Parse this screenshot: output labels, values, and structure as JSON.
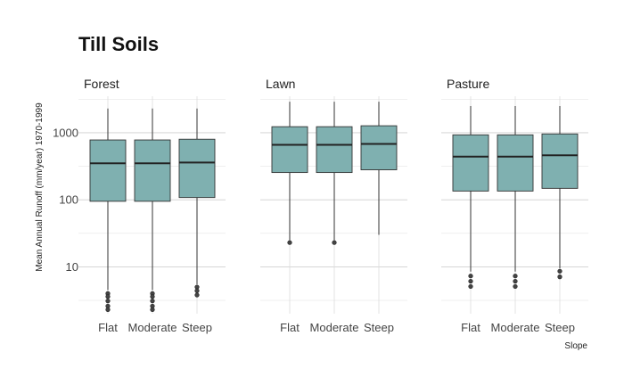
{
  "chart_data": {
    "type": "boxplot",
    "title": "Till Soils",
    "xlabel": "Slope",
    "ylabel": "Mean Annual Runoff (mm/year) 1970-1999",
    "y_scale": "log10",
    "ylim": [
      2,
      3500
    ],
    "y_ticks": [
      10,
      100,
      1000
    ],
    "y_tick_labels": [
      "10",
      "100",
      "1000"
    ],
    "categories": [
      "Flat",
      "Moderate",
      "Steep"
    ],
    "box_color": "#7fb0b0",
    "grid": true,
    "panels": [
      {
        "name": "Forest",
        "boxes": [
          {
            "category": "Flat",
            "q1": 95,
            "median": 350,
            "q3": 780,
            "whisker_low": 4.5,
            "whisker_high": 2300,
            "outliers": [
              4.0,
              3.6,
              3.1,
              2.6,
              2.3
            ]
          },
          {
            "category": "Moderate",
            "q1": 95,
            "median": 350,
            "q3": 780,
            "whisker_low": 4.5,
            "whisker_high": 2300,
            "outliers": [
              4.0,
              3.6,
              3.1,
              2.6,
              2.3
            ]
          },
          {
            "category": "Steep",
            "q1": 108,
            "median": 360,
            "q3": 800,
            "whisker_low": 5.5,
            "whisker_high": 2300,
            "outliers": [
              5.0,
              4.4,
              3.8
            ]
          }
        ]
      },
      {
        "name": "Lawn",
        "boxes": [
          {
            "category": "Flat",
            "q1": 255,
            "median": 660,
            "q3": 1230,
            "whisker_low": 25,
            "whisker_high": 2900,
            "outliers": [
              23
            ]
          },
          {
            "category": "Moderate",
            "q1": 255,
            "median": 660,
            "q3": 1230,
            "whisker_low": 25,
            "whisker_high": 2900,
            "outliers": [
              23
            ]
          },
          {
            "category": "Steep",
            "q1": 280,
            "median": 680,
            "q3": 1270,
            "whisker_low": 30,
            "whisker_high": 2900,
            "outliers": []
          }
        ]
      },
      {
        "name": "Pasture",
        "boxes": [
          {
            "category": "Flat",
            "q1": 135,
            "median": 440,
            "q3": 930,
            "whisker_low": 8.5,
            "whisker_high": 2500,
            "outliers": [
              7.3,
              6.1,
              5.1
            ]
          },
          {
            "category": "Moderate",
            "q1": 135,
            "median": 440,
            "q3": 930,
            "whisker_low": 8.5,
            "whisker_high": 2500,
            "outliers": [
              7.3,
              6.1,
              5.1
            ]
          },
          {
            "category": "Steep",
            "q1": 148,
            "median": 460,
            "q3": 960,
            "whisker_low": 9.5,
            "whisker_high": 2500,
            "outliers": [
              8.6,
              7.1
            ]
          }
        ]
      }
    ]
  }
}
